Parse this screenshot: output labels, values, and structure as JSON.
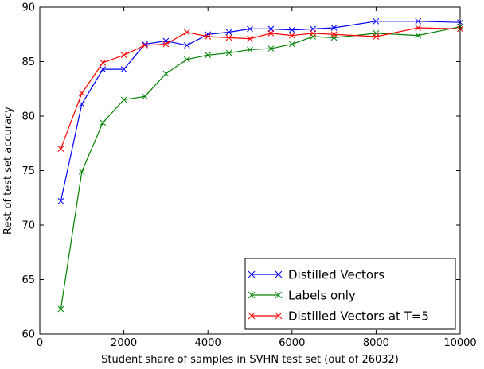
{
  "chart_data": {
    "type": "line",
    "title": "",
    "xlabel": "Student share of samples in SVHN test set (out of 26032)",
    "ylabel": "Rest of test set accuracy",
    "xlim": [
      0,
      10000
    ],
    "ylim": [
      60,
      90
    ],
    "xticks": [
      0,
      2000,
      4000,
      6000,
      8000,
      10000
    ],
    "yticks": [
      60,
      65,
      70,
      75,
      80,
      85,
      90
    ],
    "xtick_labels": [
      "0",
      "2000",
      "4000",
      "6000",
      "8000",
      "10000"
    ],
    "ytick_labels": [
      "60",
      "65",
      "70",
      "75",
      "80",
      "85",
      "90"
    ],
    "grid": false,
    "legend_position": "bottom-right",
    "marker": "x",
    "series": [
      {
        "name": "Distilled Vectors",
        "color": "#0000ff",
        "x": [
          500,
          1000,
          1500,
          2000,
          2500,
          3000,
          3500,
          4000,
          4500,
          5000,
          5500,
          6000,
          6500,
          7000,
          8000,
          9000,
          10000
        ],
        "y": [
          72.2,
          81.1,
          84.3,
          84.3,
          86.6,
          86.9,
          86.5,
          87.5,
          87.7,
          88.0,
          88.0,
          87.9,
          88.0,
          88.1,
          88.7,
          88.7,
          88.6
        ]
      },
      {
        "name": "Labels only",
        "color": "#008000",
        "x": [
          500,
          1000,
          1500,
          2000,
          2500,
          3000,
          3500,
          4000,
          4500,
          5000,
          5500,
          6000,
          6500,
          7000,
          8000,
          9000,
          10000
        ],
        "y": [
          62.3,
          74.9,
          79.4,
          81.5,
          81.8,
          83.9,
          85.2,
          85.6,
          85.8,
          86.1,
          86.2,
          86.6,
          87.3,
          87.2,
          87.6,
          87.4,
          88.2
        ]
      },
      {
        "name": "Distilled Vectors at T=5",
        "color": "#ff0000",
        "x": [
          500,
          1000,
          1500,
          2000,
          2500,
          3000,
          3500,
          4000,
          4500,
          5000,
          5500,
          6000,
          6500,
          7000,
          8000,
          9000,
          10000
        ],
        "y": [
          77.0,
          82.1,
          84.9,
          85.6,
          86.5,
          86.6,
          87.7,
          87.3,
          87.2,
          87.1,
          87.6,
          87.4,
          87.6,
          87.5,
          87.3,
          88.1,
          88.0
        ]
      }
    ]
  }
}
